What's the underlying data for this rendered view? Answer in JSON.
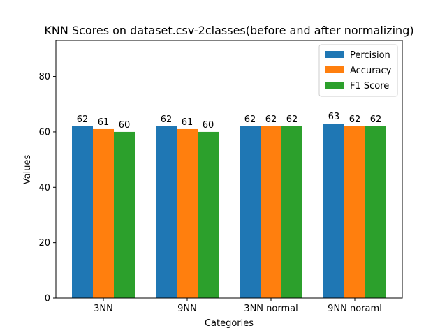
{
  "chart_data": {
    "type": "bar",
    "title": "KNN Scores on dataset.csv-2classes(before and after normalizing)",
    "xlabel": "Categories",
    "ylabel": "Values",
    "ylim": [
      0,
      93
    ],
    "yticks": [
      0,
      20,
      40,
      60,
      80
    ],
    "categories": [
      "3NN",
      "9NN",
      "3NN normal",
      "9NN noraml"
    ],
    "series": [
      {
        "name": "Percision",
        "color": "#1f77b4",
        "values": [
          62,
          62,
          62,
          63
        ]
      },
      {
        "name": "Accuracy",
        "color": "#ff7f0e",
        "values": [
          61,
          61,
          62,
          62
        ]
      },
      {
        "name": "F1 Score",
        "color": "#2ca02c",
        "values": [
          60,
          60,
          62,
          62
        ]
      }
    ],
    "grid": false,
    "legend_position": "top-right"
  }
}
